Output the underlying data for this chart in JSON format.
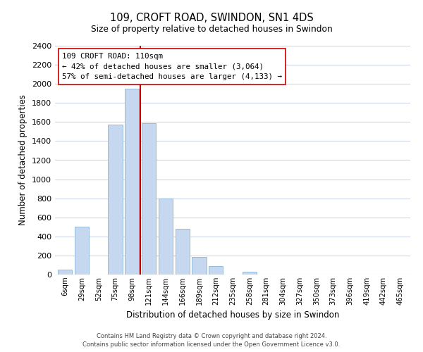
{
  "title": "109, CROFT ROAD, SWINDON, SN1 4DS",
  "subtitle": "Size of property relative to detached houses in Swindon",
  "xlabel": "Distribution of detached houses by size in Swindon",
  "ylabel": "Number of detached properties",
  "bar_labels": [
    "6sqm",
    "29sqm",
    "52sqm",
    "75sqm",
    "98sqm",
    "121sqm",
    "144sqm",
    "166sqm",
    "189sqm",
    "212sqm",
    "235sqm",
    "258sqm",
    "281sqm",
    "304sqm",
    "327sqm",
    "350sqm",
    "373sqm",
    "396sqm",
    "419sqm",
    "442sqm",
    "465sqm"
  ],
  "bar_values": [
    55,
    500,
    0,
    1575,
    1950,
    1590,
    800,
    480,
    185,
    90,
    0,
    30,
    0,
    0,
    0,
    0,
    0,
    0,
    0,
    0,
    0
  ],
  "bar_color": "#c5d8f0",
  "bar_edge_color": "#8ab4d4",
  "vline_x_index": 4.5,
  "vline_color": "#cc0000",
  "ylim": [
    0,
    2400
  ],
  "yticks": [
    0,
    200,
    400,
    600,
    800,
    1000,
    1200,
    1400,
    1600,
    1800,
    2000,
    2200,
    2400
  ],
  "annotation_title": "109 CROFT ROAD: 110sqm",
  "annotation_line1": "← 42% of detached houses are smaller (3,064)",
  "annotation_line2": "57% of semi-detached houses are larger (4,133) →",
  "annotation_box_color": "#ffffff",
  "annotation_box_edge": "#cc0000",
  "footer_line1": "Contains HM Land Registry data © Crown copyright and database right 2024.",
  "footer_line2": "Contains public sector information licensed under the Open Government Licence v3.0.",
  "background_color": "#ffffff",
  "grid_color": "#d0d8e8"
}
